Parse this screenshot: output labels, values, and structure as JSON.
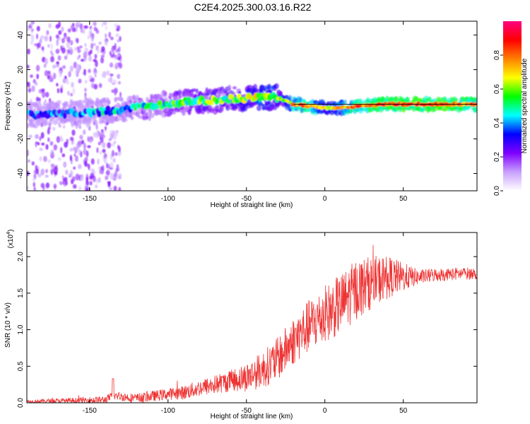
{
  "title": "C2E4.2025.300.03.16.R22",
  "chart_data": [
    {
      "type": "heatmap",
      "name": "spectrogram",
      "xlabel": "Height of straight line (km)",
      "ylabel": "Frequency (Hz)",
      "xlim": [
        -190,
        97
      ],
      "ylim": [
        -50,
        48
      ],
      "xticks": [
        -150,
        -100,
        -50,
        0,
        50
      ],
      "yticks": [
        -40,
        -20,
        0,
        20,
        40
      ],
      "colorbar": {
        "label": "Normalized spectral amplitude",
        "range": [
          0,
          1
        ],
        "ticks": [
          0.0,
          0.2,
          0.4,
          0.6,
          0.8
        ],
        "colors": [
          "#ffffff",
          "#c8a0ff",
          "#8000ff",
          "#0000ff",
          "#00ffff",
          "#00ff00",
          "#ffff00",
          "#ff8000",
          "#ff0000",
          "#ff0080"
        ]
      },
      "ridge": {
        "x": [
          -190,
          -160,
          -140,
          -120,
          -100,
          -80,
          -60,
          -40,
          -30,
          -25,
          -20,
          -10,
          0,
          10,
          20,
          40,
          60,
          80,
          97
        ],
        "frequency": [
          -6,
          -5,
          -4,
          -2,
          0,
          2,
          3,
          4,
          4,
          2,
          0,
          -1,
          -2,
          -2,
          -1,
          0,
          0,
          0,
          0
        ],
        "amplitude": [
          0.35,
          0.35,
          0.4,
          0.45,
          0.5,
          0.55,
          0.55,
          0.65,
          0.6,
          0.6,
          0.75,
          0.8,
          0.6,
          0.7,
          0.8,
          0.85,
          0.85,
          0.85,
          0.8
        ]
      }
    },
    {
      "type": "line",
      "name": "snr",
      "xlabel": "Height of straight line (km)",
      "ylabel": "SNR (10 * v/v)",
      "scale_label": "(x10",
      "scale_exponent": "4",
      "xlim": [
        -190,
        97
      ],
      "ylim": [
        0,
        2.33
      ],
      "xticks": [
        -150,
        -100,
        -50,
        0,
        50
      ],
      "yticks": [
        0.0,
        0.5,
        1.0,
        1.5,
        2.0
      ],
      "color": "#ee3333",
      "envelope": {
        "x": [
          -190,
          -160,
          -140,
          -135,
          -120,
          -100,
          -90,
          -80,
          -70,
          -60,
          -50,
          -40,
          -30,
          -20,
          -10,
          0,
          10,
          20,
          30,
          40,
          50,
          60,
          70,
          80,
          90,
          97
        ],
        "y": [
          0.02,
          0.03,
          0.04,
          0.1,
          0.06,
          0.12,
          0.14,
          0.2,
          0.25,
          0.3,
          0.35,
          0.45,
          0.6,
          0.85,
          1.05,
          1.2,
          1.35,
          1.55,
          1.65,
          1.72,
          1.72,
          1.72,
          1.75,
          1.76,
          1.77,
          1.77
        ]
      },
      "noise": {
        "x": [
          -190,
          -100,
          -60,
          -30,
          0,
          20,
          40,
          60,
          97
        ],
        "y": [
          0.02,
          0.08,
          0.15,
          0.3,
          0.4,
          0.42,
          0.3,
          0.1,
          0.08
        ]
      }
    }
  ]
}
